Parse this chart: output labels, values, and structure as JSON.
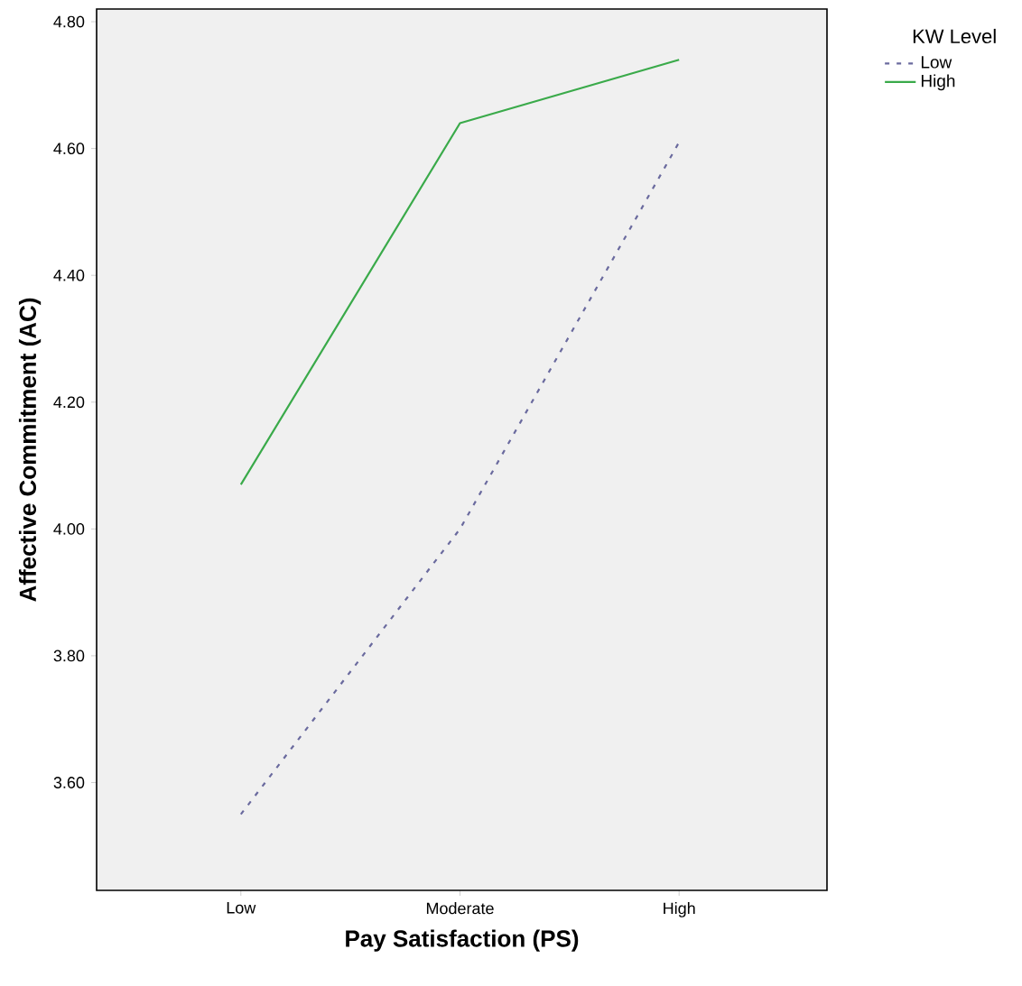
{
  "chart_data": {
    "type": "line",
    "xlabel": "Pay Satisfaction (PS)",
    "ylabel": "Affective Commitment (AC)",
    "legend_title": "KW Level",
    "categories": [
      "Low",
      "Moderate",
      "High"
    ],
    "series": [
      {
        "name": "Low",
        "color": "#6a6a9e",
        "values": [
          3.55,
          4.0,
          4.61
        ],
        "line_style": "dotted"
      },
      {
        "name": "High",
        "color": "#3aaa4a",
        "values": [
          4.07,
          4.64,
          4.74
        ],
        "line_style": "solid"
      }
    ],
    "ylim": [
      3.43,
      4.82
    ],
    "yticks": [
      {
        "value": 3.6,
        "label": "3.60"
      },
      {
        "value": 3.8,
        "label": "3.80"
      },
      {
        "value": 4.0,
        "label": "4.00"
      },
      {
        "value": 4.2,
        "label": "4.20"
      },
      {
        "value": 4.4,
        "label": "4.40"
      },
      {
        "value": 4.6,
        "label": "4.60"
      },
      {
        "value": 4.8,
        "label": "4.80"
      }
    ],
    "legend": "right"
  }
}
